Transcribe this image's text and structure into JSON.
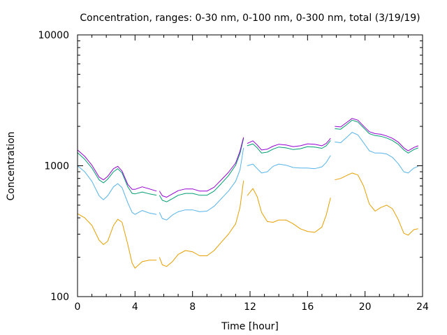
{
  "chart_data": {
    "type": "line",
    "title": "Concentration, ranges: 0-30 nm, 0-100 nm, 0-300 nm, total (3/19/19)",
    "xlabel": "Time [hour]",
    "ylabel": "Concentration",
    "xlim": [
      0,
      24
    ],
    "ylim": [
      100,
      10000
    ],
    "y_scale": "log",
    "grid": false,
    "legend": "none",
    "x_ticks": [
      0,
      4,
      8,
      12,
      16,
      20,
      24
    ],
    "x_tick_labels": [
      "0",
      "4",
      "8",
      "12",
      "16",
      "20",
      "24"
    ],
    "y_ticks": [
      100,
      1000,
      10000
    ],
    "y_tick_labels": [
      "100",
      "1000",
      "10000"
    ],
    "series": [
      {
        "color": "#e69f00",
        "segments": [
          [
            [
              0,
              430
            ],
            [
              0.5,
              400
            ],
            [
              1,
              350
            ],
            [
              1.5,
              270
            ],
            [
              1.8,
              250
            ],
            [
              2.1,
              265
            ],
            [
              2.5,
              350
            ],
            [
              2.8,
              390
            ],
            [
              3.1,
              370
            ],
            [
              3.5,
              250
            ],
            [
              3.8,
              180
            ],
            [
              4.0,
              165
            ],
            [
              4.5,
              185
            ],
            [
              5.0,
              190
            ],
            [
              5.5,
              190
            ]
          ],
          [
            [
              5.7,
              200
            ],
            [
              5.9,
              175
            ],
            [
              6.2,
              170
            ],
            [
              6.6,
              185
            ],
            [
              7.0,
              210
            ],
            [
              7.5,
              225
            ],
            [
              8.0,
              220
            ],
            [
              8.5,
              205
            ],
            [
              9.0,
              205
            ],
            [
              9.5,
              225
            ],
            [
              10.0,
              260
            ],
            [
              10.5,
              300
            ],
            [
              11.0,
              360
            ],
            [
              11.3,
              480
            ],
            [
              11.55,
              770
            ]
          ],
          [
            [
              11.8,
              590
            ],
            [
              12.2,
              670
            ],
            [
              12.5,
              580
            ],
            [
              12.8,
              440
            ],
            [
              13.2,
              375
            ],
            [
              13.6,
              370
            ],
            [
              14.0,
              385
            ],
            [
              14.5,
              385
            ],
            [
              15.0,
              360
            ],
            [
              15.5,
              330
            ],
            [
              16.0,
              315
            ],
            [
              16.5,
              310
            ],
            [
              17.0,
              340
            ],
            [
              17.3,
              420
            ],
            [
              17.6,
              570
            ]
          ],
          [
            [
              17.9,
              780
            ],
            [
              18.3,
              800
            ],
            [
              18.7,
              840
            ],
            [
              19.1,
              880
            ],
            [
              19.5,
              850
            ],
            [
              19.9,
              700
            ],
            [
              20.3,
              510
            ],
            [
              20.7,
              450
            ],
            [
              21.1,
              480
            ],
            [
              21.5,
              500
            ],
            [
              21.9,
              470
            ],
            [
              22.3,
              390
            ],
            [
              22.7,
              305
            ],
            [
              23.0,
              295
            ],
            [
              23.4,
              325
            ],
            [
              23.7,
              330
            ]
          ]
        ]
      },
      {
        "color": "#56b4e9",
        "segments": [
          [
            [
              0,
              1000
            ],
            [
              0.5,
              900
            ],
            [
              1,
              760
            ],
            [
              1.5,
              590
            ],
            [
              1.8,
              550
            ],
            [
              2.1,
              590
            ],
            [
              2.5,
              690
            ],
            [
              2.8,
              730
            ],
            [
              3.1,
              680
            ],
            [
              3.5,
              520
            ],
            [
              3.8,
              440
            ],
            [
              4.0,
              425
            ],
            [
              4.5,
              455
            ],
            [
              5.0,
              435
            ],
            [
              5.5,
              425
            ]
          ],
          [
            [
              5.7,
              440
            ],
            [
              5.9,
              395
            ],
            [
              6.2,
              385
            ],
            [
              6.6,
              420
            ],
            [
              7.0,
              445
            ],
            [
              7.5,
              460
            ],
            [
              8.0,
              460
            ],
            [
              8.5,
              445
            ],
            [
              9.0,
              450
            ],
            [
              9.5,
              490
            ],
            [
              10.0,
              560
            ],
            [
              10.5,
              640
            ],
            [
              11.0,
              760
            ],
            [
              11.3,
              930
            ],
            [
              11.55,
              1370
            ]
          ],
          [
            [
              11.8,
              1000
            ],
            [
              12.2,
              1030
            ],
            [
              12.5,
              950
            ],
            [
              12.8,
              880
            ],
            [
              13.2,
              900
            ],
            [
              13.6,
              990
            ],
            [
              14.0,
              1030
            ],
            [
              14.5,
              1010
            ],
            [
              15.0,
              970
            ],
            [
              15.5,
              960
            ],
            [
              16.0,
              960
            ],
            [
              16.5,
              950
            ],
            [
              17.0,
              980
            ],
            [
              17.3,
              1060
            ],
            [
              17.6,
              1200
            ]
          ],
          [
            [
              17.9,
              1520
            ],
            [
              18.3,
              1500
            ],
            [
              18.7,
              1640
            ],
            [
              19.1,
              1800
            ],
            [
              19.5,
              1720
            ],
            [
              19.9,
              1500
            ],
            [
              20.3,
              1300
            ],
            [
              20.7,
              1250
            ],
            [
              21.1,
              1250
            ],
            [
              21.5,
              1230
            ],
            [
              21.9,
              1160
            ],
            [
              22.3,
              1040
            ],
            [
              22.7,
              900
            ],
            [
              23.0,
              880
            ],
            [
              23.4,
              960
            ],
            [
              23.7,
              990
            ]
          ]
        ]
      },
      {
        "color": "#009e73",
        "segments": [
          [
            [
              0,
              1260
            ],
            [
              0.5,
              1120
            ],
            [
              1,
              960
            ],
            [
              1.5,
              780
            ],
            [
              1.8,
              740
            ],
            [
              2.1,
              790
            ],
            [
              2.5,
              900
            ],
            [
              2.8,
              950
            ],
            [
              3.1,
              880
            ],
            [
              3.5,
              690
            ],
            [
              3.8,
              615
            ],
            [
              4.0,
              610
            ],
            [
              4.5,
              630
            ],
            [
              5.0,
              610
            ],
            [
              5.5,
              595
            ]
          ],
          [
            [
              5.7,
              595
            ],
            [
              5.9,
              545
            ],
            [
              6.2,
              530
            ],
            [
              6.6,
              560
            ],
            [
              7.0,
              595
            ],
            [
              7.5,
              615
            ],
            [
              8.0,
              615
            ],
            [
              8.5,
              595
            ],
            [
              9.0,
              595
            ],
            [
              9.5,
              640
            ],
            [
              10.0,
              730
            ],
            [
              10.5,
              840
            ],
            [
              11.0,
              1010
            ],
            [
              11.3,
              1240
            ],
            [
              11.55,
              1620
            ]
          ],
          [
            [
              11.8,
              1420
            ],
            [
              12.2,
              1470
            ],
            [
              12.5,
              1370
            ],
            [
              12.8,
              1250
            ],
            [
              13.2,
              1270
            ],
            [
              13.6,
              1340
            ],
            [
              14.0,
              1390
            ],
            [
              14.5,
              1370
            ],
            [
              15.0,
              1330
            ],
            [
              15.5,
              1350
            ],
            [
              16.0,
              1400
            ],
            [
              16.5,
              1390
            ],
            [
              17.0,
              1360
            ],
            [
              17.3,
              1420
            ],
            [
              17.6,
              1560
            ]
          ],
          [
            [
              17.9,
              1920
            ],
            [
              18.3,
              1900
            ],
            [
              18.7,
              2050
            ],
            [
              19.1,
              2230
            ],
            [
              19.5,
              2160
            ],
            [
              19.9,
              1950
            ],
            [
              20.3,
              1760
            ],
            [
              20.7,
              1700
            ],
            [
              21.1,
              1680
            ],
            [
              21.5,
              1630
            ],
            [
              21.9,
              1560
            ],
            [
              22.3,
              1460
            ],
            [
              22.7,
              1320
            ],
            [
              23.0,
              1250
            ],
            [
              23.4,
              1330
            ],
            [
              23.7,
              1370
            ]
          ]
        ]
      },
      {
        "color": "#9400d3",
        "segments": [
          [
            [
              0,
              1320
            ],
            [
              0.5,
              1180
            ],
            [
              1,
              1010
            ],
            [
              1.5,
              820
            ],
            [
              1.8,
              780
            ],
            [
              2.1,
              830
            ],
            [
              2.5,
              950
            ],
            [
              2.8,
              990
            ],
            [
              3.1,
              910
            ],
            [
              3.5,
              720
            ],
            [
              3.8,
              660
            ],
            [
              4.0,
              660
            ],
            [
              4.5,
              690
            ],
            [
              5.0,
              665
            ],
            [
              5.5,
              640
            ]
          ],
          [
            [
              5.7,
              640
            ],
            [
              5.9,
              590
            ],
            [
              6.2,
              575
            ],
            [
              6.6,
              610
            ],
            [
              7.0,
              645
            ],
            [
              7.5,
              665
            ],
            [
              8.0,
              665
            ],
            [
              8.5,
              640
            ],
            [
              9.0,
              640
            ],
            [
              9.5,
              685
            ],
            [
              10.0,
              780
            ],
            [
              10.5,
              890
            ],
            [
              11.0,
              1050
            ],
            [
              11.3,
              1290
            ],
            [
              11.55,
              1650
            ]
          ],
          [
            [
              11.8,
              1480
            ],
            [
              12.2,
              1550
            ],
            [
              12.5,
              1440
            ],
            [
              12.8,
              1320
            ],
            [
              13.2,
              1340
            ],
            [
              13.6,
              1410
            ],
            [
              14.0,
              1460
            ],
            [
              14.5,
              1440
            ],
            [
              15.0,
              1400
            ],
            [
              15.5,
              1420
            ],
            [
              16.0,
              1470
            ],
            [
              16.5,
              1460
            ],
            [
              17.0,
              1420
            ],
            [
              17.3,
              1480
            ],
            [
              17.6,
              1620
            ]
          ],
          [
            [
              17.9,
              2000
            ],
            [
              18.3,
              1980
            ],
            [
              18.7,
              2130
            ],
            [
              19.1,
              2300
            ],
            [
              19.5,
              2230
            ],
            [
              19.9,
              2010
            ],
            [
              20.3,
              1820
            ],
            [
              20.7,
              1760
            ],
            [
              21.1,
              1740
            ],
            [
              21.5,
              1690
            ],
            [
              21.9,
              1620
            ],
            [
              22.3,
              1520
            ],
            [
              22.7,
              1370
            ],
            [
              23.0,
              1300
            ],
            [
              23.4,
              1380
            ],
            [
              23.7,
              1420
            ]
          ]
        ]
      }
    ]
  }
}
